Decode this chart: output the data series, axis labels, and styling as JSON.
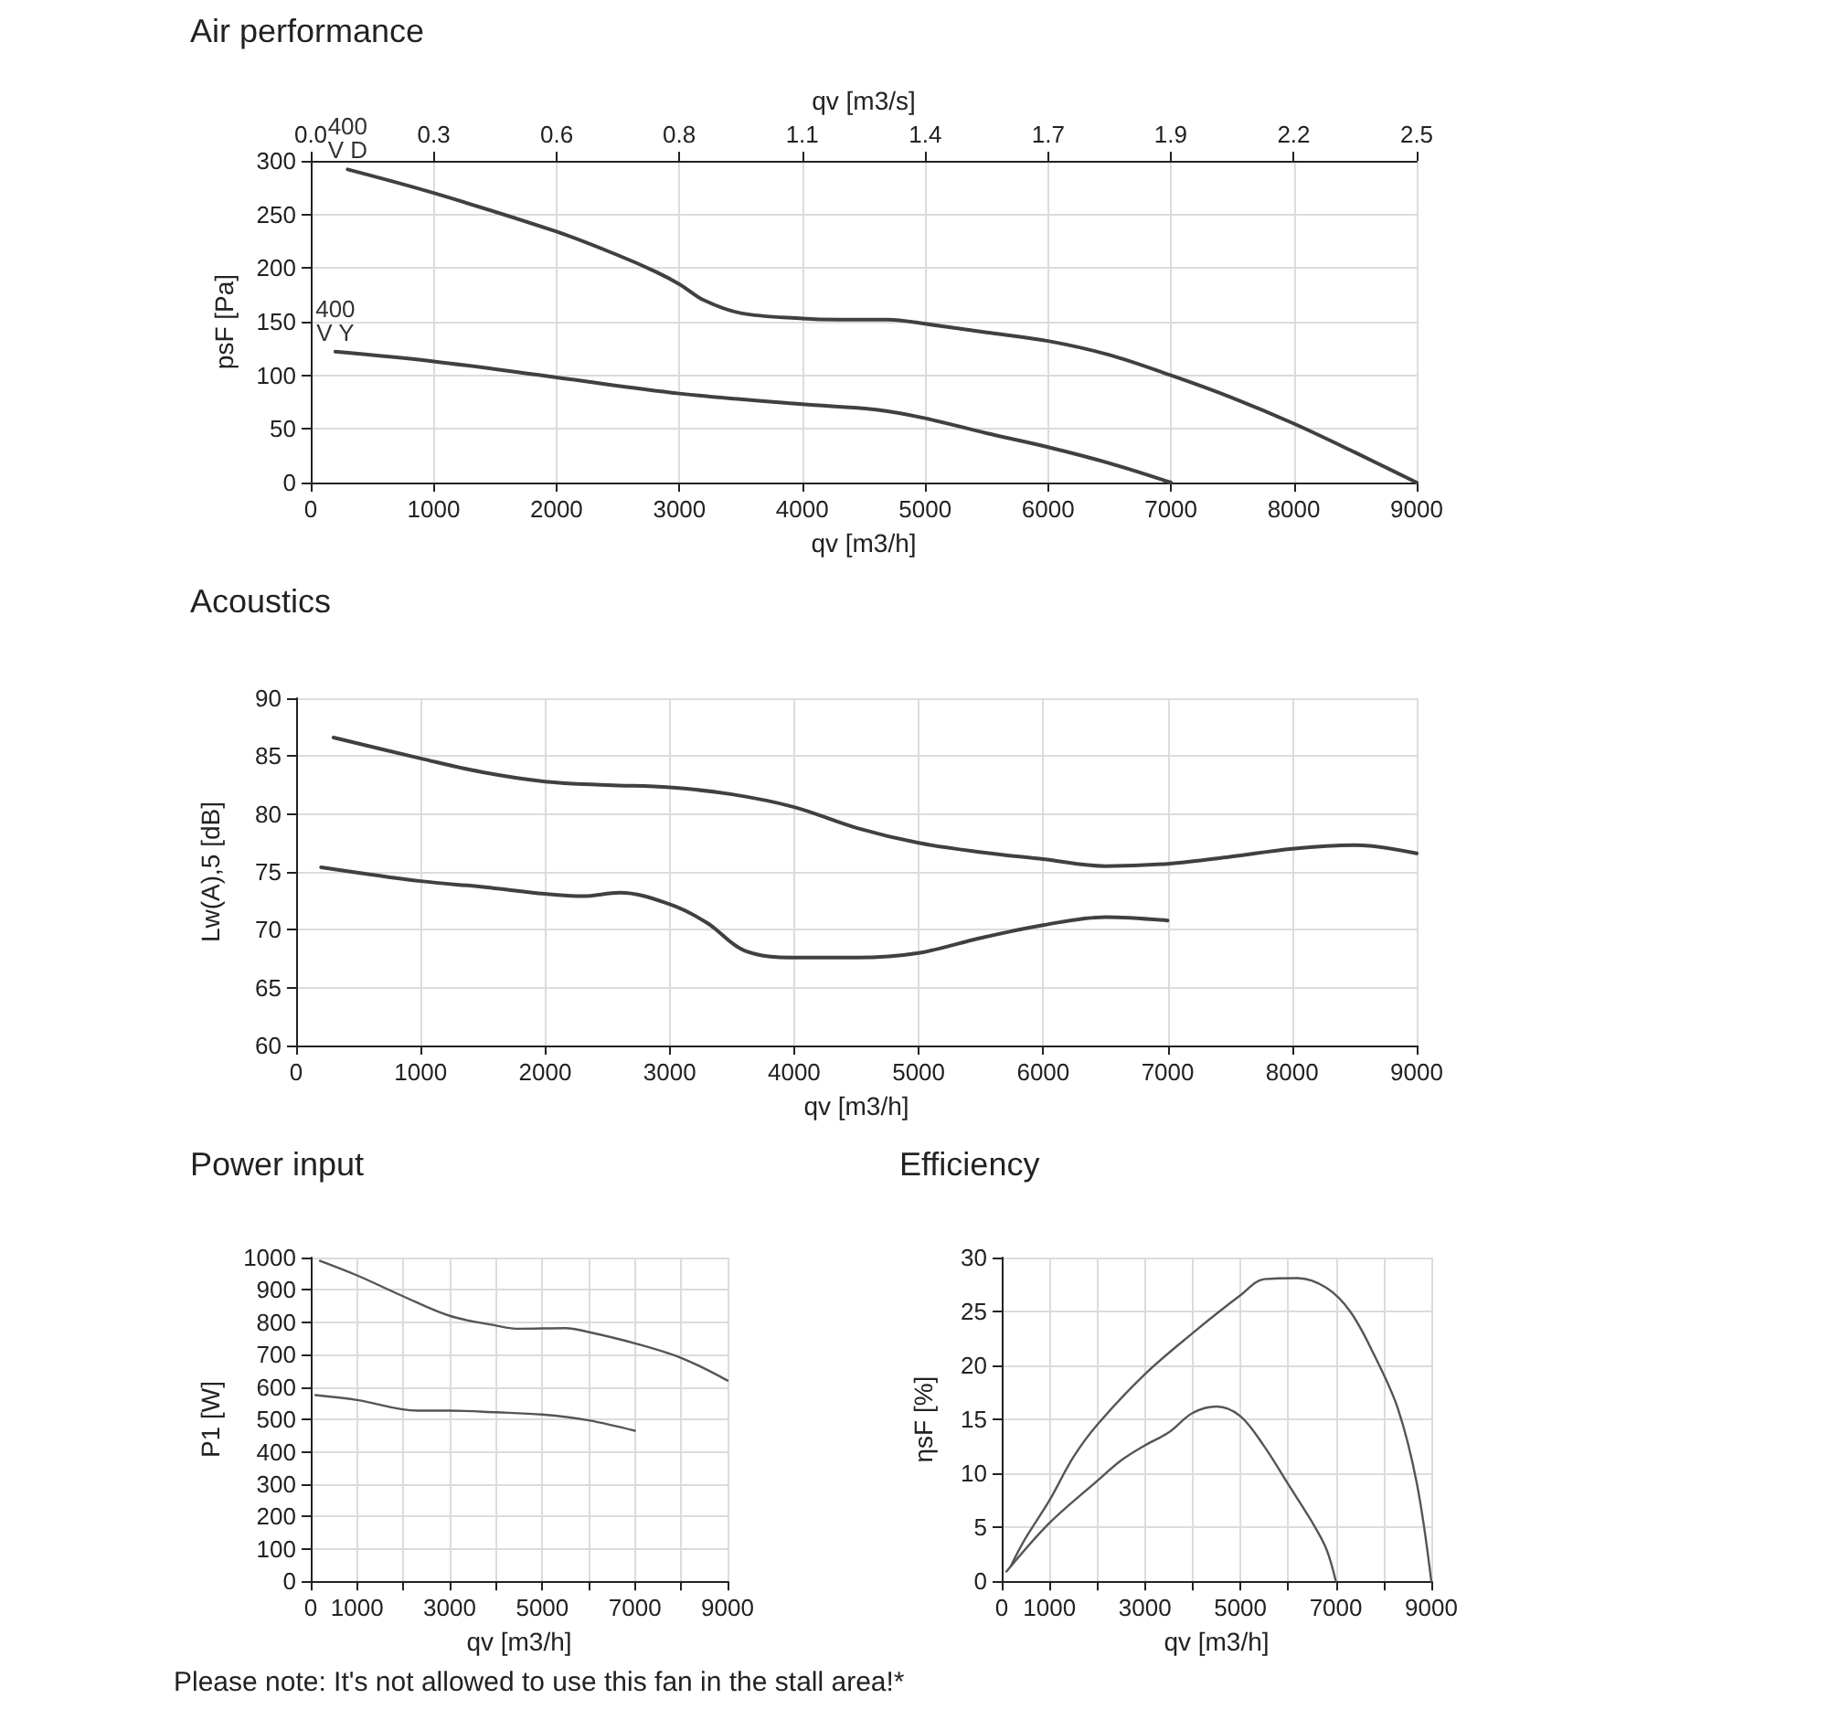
{
  "chart_data": [
    {
      "type": "line",
      "title": "Air performance",
      "xlabel": "qv [m3/h]",
      "ylabel": "psF [Pa]",
      "x2label": "qv [m3/s]",
      "grid": true,
      "xlim": [
        0,
        9000
      ],
      "xticks": [
        0,
        1000,
        2000,
        3000,
        4000,
        5000,
        6000,
        7000,
        8000,
        9000
      ],
      "ylim": [
        0,
        300
      ],
      "yticks": [
        0,
        50,
        100,
        150,
        200,
        250,
        300
      ],
      "x2lim": [
        0,
        2.5
      ],
      "x2ticks": [
        {
          "value": 0,
          "label": "0.0"
        },
        {
          "value": 0.278,
          "label": "0.3"
        },
        {
          "value": 0.556,
          "label": "0.6"
        },
        {
          "value": 0.833,
          "label": "0.8"
        },
        {
          "value": 1.111,
          "label": "1.1"
        },
        {
          "value": 1.389,
          "label": "1.4"
        },
        {
          "value": 1.667,
          "label": "1.7"
        },
        {
          "value": 1.944,
          "label": "1.9"
        },
        {
          "value": 2.222,
          "label": "2.2"
        },
        {
          "value": 2.5,
          "label": "2.5"
        }
      ],
      "series": [
        {
          "name": "400 V D",
          "color": "#404040",
          "x": [
            300,
            1000,
            2000,
            2500,
            2800,
            3000,
            3200,
            3500,
            4000,
            4300,
            4700,
            5000,
            5500,
            6000,
            6500,
            7000,
            7500,
            8000,
            8500,
            9000
          ],
          "values": [
            292,
            270,
            234,
            212,
            197,
            185,
            170,
            158,
            153,
            152,
            152,
            148,
            140,
            132,
            119,
            100,
            79,
            55,
            28,
            0
          ]
        },
        {
          "name": "400 V Y",
          "color": "#404040",
          "x": [
            200,
            1000,
            2000,
            3000,
            4000,
            4600,
            5000,
            5500,
            6000,
            6500,
            7000
          ],
          "values": [
            122,
            113,
            98,
            83,
            73,
            68,
            60,
            46,
            33,
            18,
            0
          ]
        }
      ]
    },
    {
      "type": "line",
      "title": "Acoustics",
      "xlabel": "qv [m3/h]",
      "ylabel": "Lw(A),5 [dB]",
      "grid": true,
      "xlim": [
        0,
        9000
      ],
      "xticks": [
        0,
        1000,
        2000,
        3000,
        4000,
        5000,
        6000,
        7000,
        8000,
        9000
      ],
      "ylim": [
        60,
        90
      ],
      "yticks": [
        60,
        65,
        70,
        75,
        80,
        85,
        90
      ],
      "series": [
        {
          "color": "#404040",
          "x": [
            300,
            1000,
            1500,
            2000,
            2500,
            3000,
            3500,
            4000,
            4500,
            5000,
            5500,
            6000,
            6500,
            7000,
            7500,
            8000,
            8500,
            9000
          ],
          "values": [
            86.6,
            84.8,
            83.6,
            82.8,
            82.5,
            82.3,
            81.7,
            80.6,
            78.8,
            77.5,
            76.7,
            76.1,
            75.5,
            75.7,
            76.3,
            77.0,
            77.3,
            76.6
          ]
        },
        {
          "color": "#404040",
          "x": [
            200,
            1000,
            1500,
            2000,
            2300,
            2600,
            3000,
            3300,
            3600,
            4000,
            4500,
            5000,
            5500,
            6000,
            6500,
            7000
          ],
          "values": [
            75.4,
            74.2,
            73.7,
            73.1,
            72.9,
            73.2,
            72.2,
            70.6,
            68.2,
            67.6,
            67.6,
            68.0,
            69.3,
            70.4,
            71.1,
            70.8
          ]
        }
      ]
    },
    {
      "type": "line",
      "title": "Power input",
      "xlabel": "qv [m3/h]",
      "ylabel": "P1 [W]",
      "grid": true,
      "xlim": [
        0,
        9000
      ],
      "xticks": [
        0,
        1000,
        {
          "value": 2000,
          "label": null
        },
        3000,
        {
          "value": 4000,
          "label": null
        },
        5000,
        {
          "value": 6000,
          "label": null
        },
        7000,
        {
          "value": 8000,
          "label": null
        },
        9000
      ],
      "ylim": [
        0,
        1000
      ],
      "yticks": [
        0,
        100,
        200,
        300,
        400,
        500,
        600,
        700,
        800,
        900,
        1000
      ],
      "series": [
        {
          "color": "#555555",
          "x": [
            200,
            1000,
            2000,
            3000,
            4000,
            4500,
            5500,
            6000,
            7000,
            8000,
            9000
          ],
          "values": [
            990,
            945,
            880,
            820,
            790,
            780,
            782,
            770,
            735,
            690,
            620
          ]
        },
        {
          "color": "#555555",
          "x": [
            100,
            1000,
            2300,
            3000,
            4000,
            5000,
            6000,
            7000
          ],
          "values": [
            575,
            560,
            527,
            527,
            522,
            515,
            497,
            465
          ]
        }
      ]
    },
    {
      "type": "line",
      "title": "Efficiency",
      "xlabel": "qv [m3/h]",
      "ylabel": "ηsF [%]",
      "grid": true,
      "xlim": [
        0,
        9000
      ],
      "xticks": [
        0,
        1000,
        {
          "value": 2000,
          "label": null
        },
        3000,
        {
          "value": 4000,
          "label": null
        },
        5000,
        {
          "value": 6000,
          "label": null
        },
        7000,
        {
          "value": 8000,
          "label": null
        },
        9000
      ],
      "ylim": [
        0,
        30
      ],
      "yticks": [
        0,
        5,
        10,
        15,
        20,
        25,
        30
      ],
      "annotations": [
        "Please note: It's not allowed to use this fan in the stall area!*"
      ],
      "series": [
        {
          "color": "#555555",
          "x": [
            200,
            500,
            1000,
            1500,
            2000,
            3000,
            4000,
            5000,
            5500,
            6200,
            6800,
            7300,
            7800,
            8300,
            8700,
            9000
          ],
          "values": [
            1.5,
            4,
            7.5,
            11.5,
            14.5,
            19.2,
            23,
            26.5,
            28,
            28.1,
            27.2,
            25,
            21,
            16,
            9,
            0
          ]
        },
        {
          "color": "#555555",
          "x": [
            100,
            1000,
            2000,
            2500,
            3000,
            3500,
            4000,
            4500,
            5000,
            5500,
            6000,
            6500,
            6800,
            7000
          ],
          "values": [
            0.9,
            5.4,
            9.3,
            11.2,
            12.6,
            13.8,
            15.6,
            16.2,
            15.3,
            12.5,
            9,
            5.5,
            3,
            0
          ]
        }
      ]
    }
  ]
}
